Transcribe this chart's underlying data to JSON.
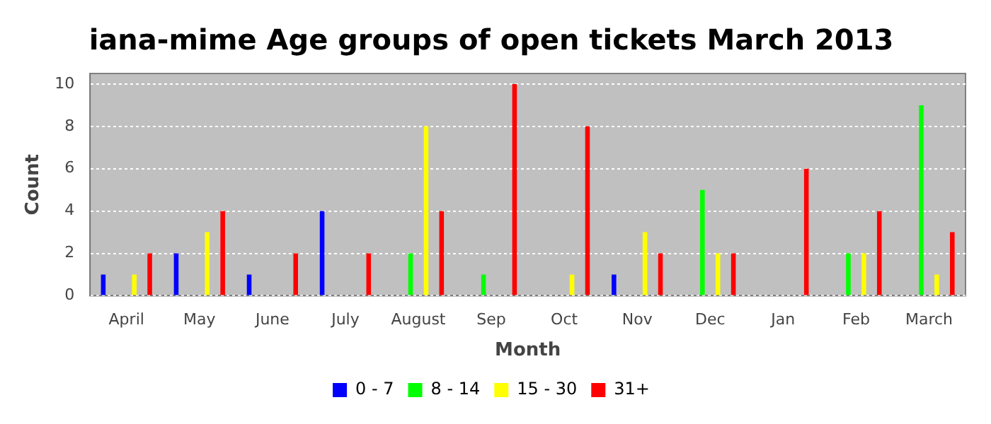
{
  "chart_data": {
    "type": "bar",
    "title": "iana-mime Age groups of open tickets March 2013",
    "xlabel": "Month",
    "ylabel": "Count",
    "categories": [
      "April",
      "May",
      "June",
      "July",
      "August",
      "Sep",
      "Oct",
      "Nov",
      "Dec",
      "Jan",
      "Feb",
      "March"
    ],
    "series": [
      {
        "name": "0 - 7",
        "color": "#0000ff",
        "values": [
          1,
          2,
          1,
          4,
          0,
          0,
          0,
          1,
          0,
          0,
          0,
          0
        ]
      },
      {
        "name": "8 - 14",
        "color": "#00ff00",
        "values": [
          0,
          0,
          0,
          0,
          2,
          1,
          0,
          0,
          5,
          0,
          2,
          9
        ]
      },
      {
        "name": "15 - 30",
        "color": "#ffff00",
        "values": [
          1,
          3,
          0,
          0,
          8,
          0,
          1,
          3,
          2,
          0,
          2,
          1
        ]
      },
      {
        "name": "31+",
        "color": "#ff0000",
        "values": [
          2,
          4,
          2,
          2,
          4,
          10,
          8,
          2,
          2,
          6,
          4,
          3
        ]
      }
    ],
    "ylim": [
      0,
      10.5
    ],
    "yticks": [
      0,
      2,
      4,
      6,
      8,
      10
    ],
    "grid": "y",
    "legend": "bottom"
  }
}
